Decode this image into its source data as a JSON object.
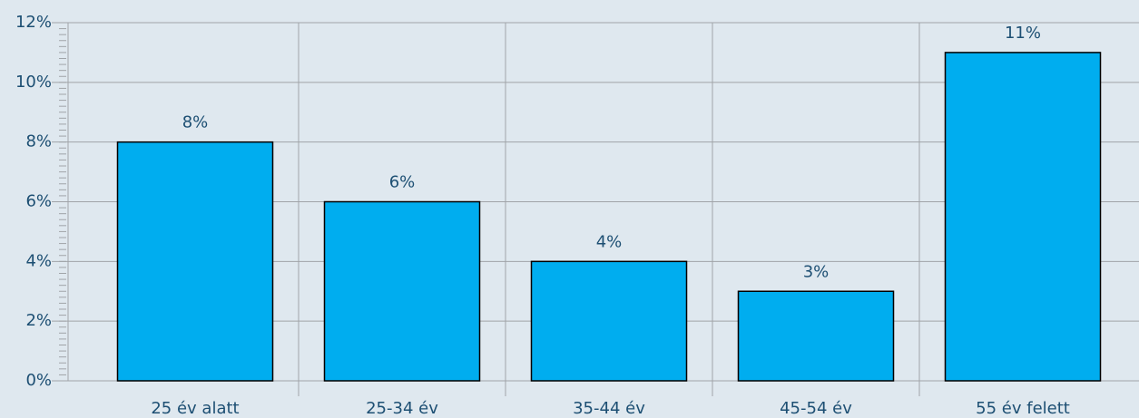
{
  "chart_data": {
    "type": "bar",
    "categories": [
      "25 év alatt",
      "25-34 év",
      "35-44 év",
      "45-54 év",
      "55 év felett"
    ],
    "values": [
      8,
      6,
      4,
      3,
      11
    ],
    "value_labels": [
      "8%",
      "6%",
      "4%",
      "3%",
      "11%"
    ],
    "color": "#00adef",
    "ylim": [
      0,
      12
    ],
    "yticks": [
      {
        "value": 0,
        "label": "0%"
      },
      {
        "value": 2,
        "label": "2%"
      },
      {
        "value": 4,
        "label": "4%"
      },
      {
        "value": 6,
        "label": "6%"
      },
      {
        "value": 8,
        "label": "8%"
      },
      {
        "value": 10,
        "label": "10%"
      },
      {
        "value": 12,
        "label": "12%"
      }
    ],
    "grid": true
  }
}
